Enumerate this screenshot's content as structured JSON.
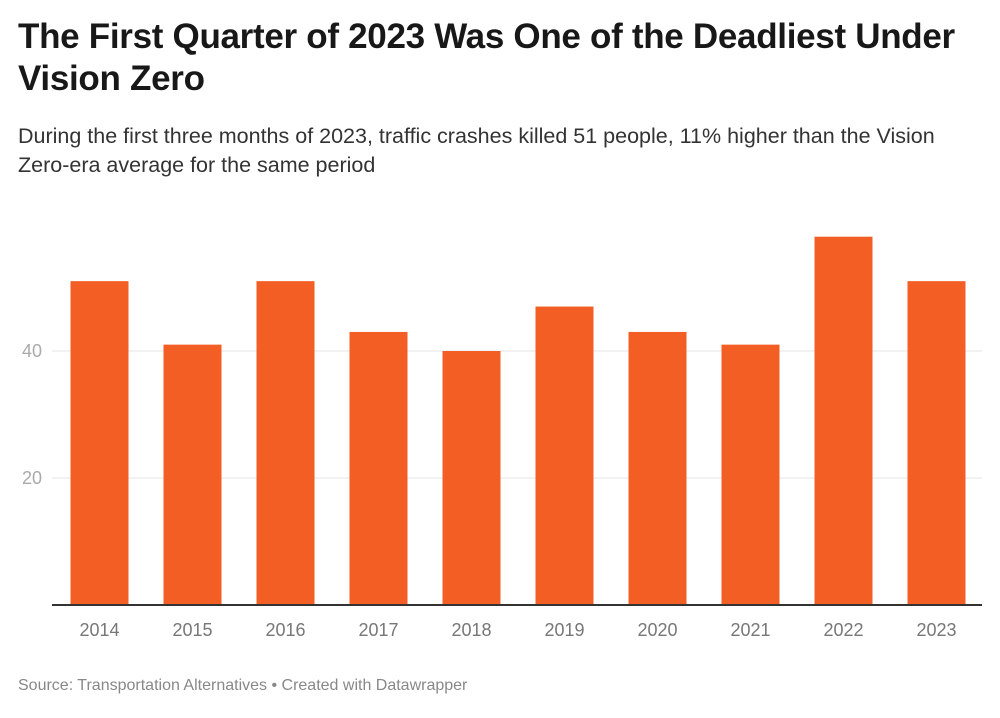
{
  "title": "The First Quarter of 2023 Was One of the Deadliest Under Vision Zero",
  "subtitle": "During the first three months of 2023, traffic crashes killed 51 people, 11% higher than the Vision Zero-era average for the same period",
  "footer": "Source: Transportation Alternatives • Created with Datawrapper",
  "colors": {
    "bar": "#f25e24",
    "grid": "#e6e6e6",
    "axis": "#333333"
  },
  "chart_data": {
    "type": "bar",
    "title": "The First Quarter of 2023 Was One of the Deadliest Under Vision Zero",
    "xlabel": "",
    "ylabel": "",
    "categories": [
      "2014",
      "2015",
      "2016",
      "2017",
      "2018",
      "2019",
      "2020",
      "2021",
      "2022",
      "2023"
    ],
    "values": [
      51,
      41,
      51,
      43,
      40,
      47,
      43,
      41,
      58,
      51
    ],
    "ylim": [
      0,
      60
    ],
    "yticks": [
      "20",
      "40"
    ],
    "grid": true,
    "legend": "none"
  }
}
